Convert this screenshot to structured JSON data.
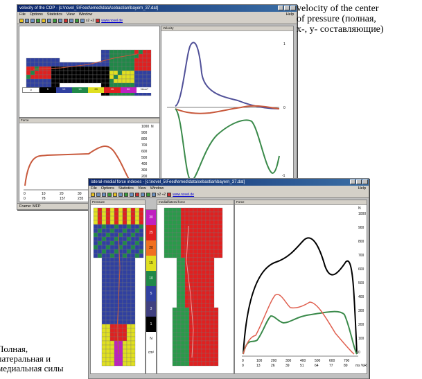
{
  "window1": {
    "title": "velocity of the COP - [c:\\novel_5\\Feed\\emed\\data\\sebastian\\bayern_37.dat]",
    "menu": [
      "File",
      "Options",
      "Statistics",
      "View",
      "Window"
    ],
    "menu_right": "Help",
    "toolbar_text": "x2 ÷2",
    "toolbar_link": "www.novel.de",
    "pane_footprint_title": "",
    "pane_velocity_title": "Velocity",
    "pane_force_title": "Force",
    "legend_values": [
      "0",
      "5",
      "10",
      "15",
      "20",
      "25",
      "30"
    ],
    "legend_unit": "N/cm²",
    "force_yticks": [
      "1000",
      "900",
      "800",
      "700",
      "600",
      "500",
      "400",
      "300",
      "200",
      "100",
      "0"
    ],
    "force_xticks": [
      "0",
      "78",
      "157",
      "235",
      "314",
      "392",
      "470"
    ],
    "force_xticks_top": [
      "0",
      "10",
      "20",
      "30",
      "40",
      "50",
      "60"
    ],
    "force_unit_y": "N",
    "velocity_yticks": [
      "1",
      "0",
      "-1"
    ],
    "status": "Frame: MFP"
  },
  "window2": {
    "title": "lateral-medial force indexes - [c:\\novel_5\\Feed\\emed\\data\\sebastian\\bayern_37.dat]",
    "menu": [
      "File",
      "Options",
      "Statistics",
      "View",
      "Window"
    ],
    "menu_right": "Help",
    "toolbar_text": "x2 ÷2",
    "toolbar_link": "www.novel.de",
    "pane_pressure_title": "Pressure",
    "pane_lm_title": "medial/lateral force",
    "pane_force_title": "Force",
    "legend_values": [
      "30",
      "25",
      "20",
      "15",
      "10",
      "5",
      "3",
      "1",
      "N",
      "cm²"
    ],
    "yticks": [
      "1000",
      "900",
      "800",
      "700",
      "600",
      "500",
      "400",
      "300",
      "200",
      "100",
      "0"
    ],
    "xticks": [
      "0",
      "100",
      "200",
      "300",
      "400",
      "500",
      "600",
      "700"
    ],
    "xticks_bottom": [
      "0",
      "13",
      "26",
      "39",
      "51",
      "64",
      "77",
      "89"
    ],
    "unit_y": "N",
    "unit_x": "ms %ROP"
  },
  "caption_right": {
    "line1": "velocity of the center",
    "line2": "of pressure (полная,",
    "line3": "x-, y- составляющие)"
  },
  "caption_left": {
    "line1": "Полная,",
    "line2": "латеральная и",
    "line3": "медиальная силы"
  },
  "colors": {
    "blue_curve": "#505098",
    "red_curve": "#c8593c",
    "green_curve": "#3a8a4a",
    "black_curve": "#000000",
    "salmon_curve": "#e06050",
    "pressure_red": "#e02020",
    "pressure_green": "#2a9a4a"
  }
}
